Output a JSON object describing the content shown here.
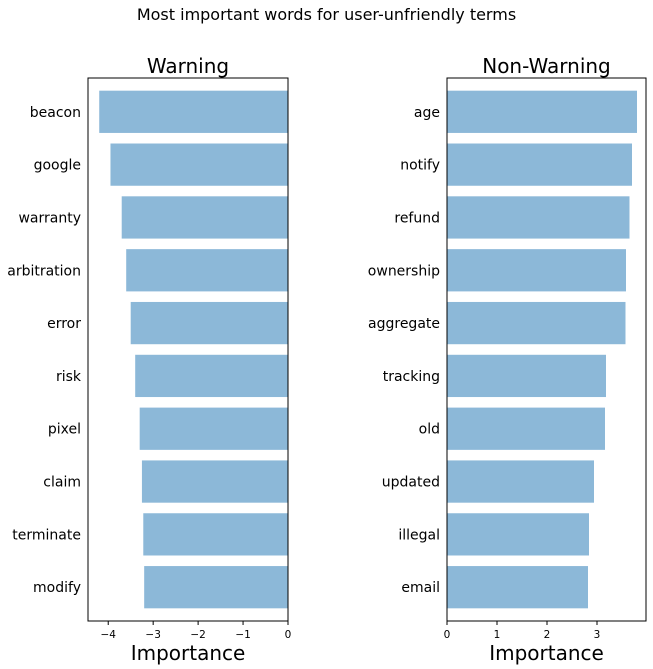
{
  "suptitle": "Most important words for user-unfriendly terms",
  "chart_data": [
    {
      "type": "bar",
      "orientation": "horizontal",
      "title": "Warning",
      "xlabel": "Importance",
      "ylabel": "",
      "categories": [
        "beacon",
        "google",
        "warranty",
        "arbitration",
        "error",
        "risk",
        "pixel",
        "claim",
        "terminate",
        "modify"
      ],
      "values": [
        -4.2,
        -3.95,
        -3.7,
        -3.6,
        -3.5,
        -3.4,
        -3.3,
        -3.25,
        -3.22,
        -3.2
      ],
      "xlim": [
        -4.45,
        0
      ],
      "xticks": [
        -4,
        -3,
        -2,
        -1,
        0
      ],
      "grid": false,
      "bar_color": "#8cb8d8"
    },
    {
      "type": "bar",
      "orientation": "horizontal",
      "title": "Non-Warning",
      "xlabel": "Importance",
      "ylabel": "",
      "categories": [
        "age",
        "notify",
        "refund",
        "ownership",
        "aggregate",
        "tracking",
        "old",
        "updated",
        "illegal",
        "email"
      ],
      "values": [
        3.8,
        3.7,
        3.65,
        3.58,
        3.57,
        3.18,
        3.16,
        2.94,
        2.84,
        2.82
      ],
      "xlim": [
        0,
        3.98
      ],
      "xticks": [
        0,
        1,
        2,
        3
      ],
      "grid": false,
      "bar_color": "#8cb8d8"
    }
  ]
}
